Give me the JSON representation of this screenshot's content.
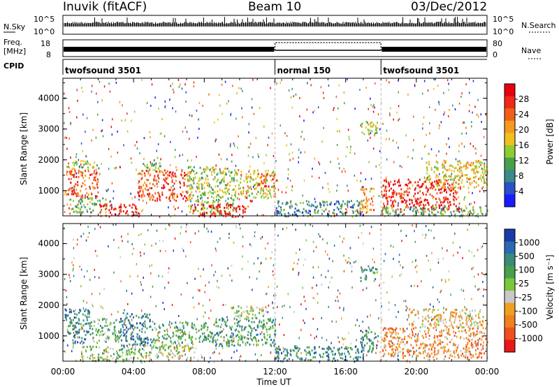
{
  "header": {
    "station": "Inuvik (fitACF)",
    "beam": "Beam 10",
    "date": "03/Dec/2012"
  },
  "aux_panels": {
    "noise": {
      "left_label": "N.Sky",
      "right_label": "N.Search",
      "left_ticks": [
        "10^5",
        "10^0"
      ],
      "right_ticks": [
        "10^5",
        "10^0"
      ]
    },
    "freq": {
      "left_label_1": "Freq.",
      "left_label_2": "[MHz]",
      "left_ticks": [
        "18",
        "8"
      ],
      "right_label": "Nave",
      "right_ticks": [
        "80",
        "0"
      ]
    },
    "cpid": {
      "label": "CPID",
      "segments": [
        {
          "name": "twofsound 3501",
          "start_hour": 0,
          "end_hour": 12
        },
        {
          "name": "normal 150",
          "start_hour": 12,
          "end_hour": 18
        },
        {
          "name": "twofsound 3501",
          "start_hour": 18,
          "end_hour": 24
        }
      ]
    }
  },
  "chart_data": [
    {
      "type": "heatmap",
      "title": "",
      "ylabel": "Slant Range [km]",
      "xlabel": "",
      "x_range_hours": [
        0,
        24
      ],
      "ylim": [
        180,
        4650
      ],
      "yticks": [
        1000,
        2000,
        3000,
        4000
      ],
      "colorbar": {
        "label": "Power [dB]",
        "ticks": [
          4,
          8,
          12,
          16,
          20,
          24,
          28
        ],
        "range": [
          0,
          32
        ],
        "colors": [
          "#1a1aff",
          "#2a50c8",
          "#3a8a8a",
          "#48a04a",
          "#8ecc30",
          "#f0c020",
          "#f59a20",
          "#f06018",
          "#f02818",
          "#e80010"
        ]
      },
      "regions": [
        {
          "t0": 0.1,
          "t1": 2.0,
          "r0": 800,
          "r1": 1700,
          "level": 0.78
        },
        {
          "t0": 0.1,
          "t1": 2.0,
          "r0": 1700,
          "r1": 2000,
          "level": 0.45
        },
        {
          "t0": 0.5,
          "t1": 2.4,
          "r0": 300,
          "r1": 800,
          "level": 0.35
        },
        {
          "t0": 2.0,
          "t1": 4.3,
          "r0": 180,
          "r1": 600,
          "level": 0.88
        },
        {
          "t0": 4.2,
          "t1": 7.2,
          "r0": 700,
          "r1": 1700,
          "level": 0.8
        },
        {
          "t0": 4.5,
          "t1": 5.5,
          "r0": 1700,
          "r1": 2100,
          "level": 0.4
        },
        {
          "t0": 7.0,
          "t1": 9.8,
          "r0": 300,
          "r1": 1800,
          "level": 0.45
        },
        {
          "t0": 7.2,
          "t1": 10.5,
          "r0": 180,
          "r1": 600,
          "level": 0.92
        },
        {
          "t0": 9.8,
          "t1": 12.0,
          "r0": 800,
          "r1": 1700,
          "level": 0.55
        },
        {
          "t0": 11.0,
          "t1": 12.0,
          "r0": 1100,
          "r1": 1600,
          "level": 0.8
        },
        {
          "t0": 12.0,
          "t1": 17.0,
          "r0": 200,
          "r1": 700,
          "level": 0.25
        },
        {
          "t0": 16.7,
          "t1": 17.6,
          "r0": 300,
          "r1": 1100,
          "level": 0.65
        },
        {
          "t0": 16.8,
          "t1": 17.8,
          "r0": 2800,
          "r1": 3300,
          "level": 0.5
        },
        {
          "t0": 18.0,
          "t1": 22.5,
          "r0": 400,
          "r1": 1400,
          "level": 0.88
        },
        {
          "t0": 20.5,
          "t1": 24.0,
          "r0": 1100,
          "r1": 2000,
          "level": 0.55
        },
        {
          "t0": 18.0,
          "t1": 24.0,
          "r0": 200,
          "r1": 500,
          "level": 0.35
        }
      ]
    },
    {
      "type": "heatmap",
      "title": "",
      "ylabel": "Slant Range [km]",
      "xlabel": "Time UT",
      "x_range_hours": [
        0,
        24
      ],
      "xticks": [
        "00:00",
        "04:00",
        "08:00",
        "12:00",
        "16:00",
        "20:00",
        "00:00"
      ],
      "ylim": [
        180,
        4650
      ],
      "yticks": [
        1000,
        2000,
        3000,
        4000
      ],
      "colorbar": {
        "label": "Velocity [m s⁻¹]",
        "ticks": [
          1000,
          500,
          100,
          25,
          -25,
          -100,
          -500,
          -1000
        ],
        "colors": [
          "#1a3aa8",
          "#2a6ab0",
          "#3a8a7a",
          "#48a04a",
          "#7ac83a",
          "#c8c8c8",
          "#f0a020",
          "#f08020",
          "#f05020",
          "#e81818"
        ]
      },
      "regions": [
        {
          "t0": 0.1,
          "t1": 1.5,
          "r0": 800,
          "r1": 1900,
          "level": 0.22
        },
        {
          "t0": 1.0,
          "t1": 4.5,
          "r0": 180,
          "r1": 700,
          "level": 0.45
        },
        {
          "t0": 1.5,
          "t1": 3.2,
          "r0": 800,
          "r1": 1600,
          "level": 0.4
        },
        {
          "t0": 3.2,
          "t1": 5.0,
          "r0": 700,
          "r1": 1800,
          "level": 0.2
        },
        {
          "t0": 4.5,
          "t1": 7.5,
          "r0": 300,
          "r1": 800,
          "level": 0.5
        },
        {
          "t0": 5.0,
          "t1": 8.5,
          "r0": 800,
          "r1": 1500,
          "level": 0.35
        },
        {
          "t0": 8.5,
          "t1": 12.0,
          "r0": 700,
          "r1": 1600,
          "level": 0.3
        },
        {
          "t0": 9.5,
          "t1": 11.5,
          "r0": 1600,
          "r1": 2000,
          "level": 0.5
        },
        {
          "t0": 12.0,
          "t1": 17.0,
          "r0": 200,
          "r1": 700,
          "level": 0.25
        },
        {
          "t0": 16.8,
          "t1": 17.8,
          "r0": 500,
          "r1": 1200,
          "level": 0.22
        },
        {
          "t0": 16.8,
          "t1": 17.8,
          "r0": 2800,
          "r1": 3300,
          "level": 0.3
        },
        {
          "t0": 18.0,
          "t1": 24.0,
          "r0": 300,
          "r1": 1300,
          "level": 0.72
        },
        {
          "t0": 19.5,
          "t1": 24.0,
          "r0": 1300,
          "r1": 1900,
          "level": 0.62
        }
      ]
    }
  ],
  "colors": {
    "grid_dash": "#bbbbbb",
    "axis": "#000000"
  }
}
